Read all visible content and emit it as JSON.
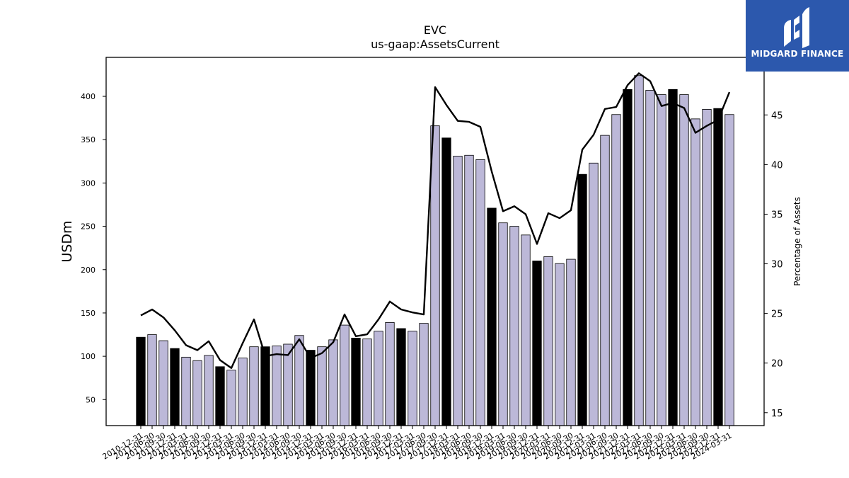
{
  "title": "EVC",
  "subtitle": "us-gaap:AssetsCurrent",
  "brand": {
    "name": "MIDGARD FINANCE",
    "color": "#2c58ad",
    "icon": "midgard-logo-icon"
  },
  "colors": {
    "bar_year_end": "#000000",
    "bar_quarter": "#bcb8d8",
    "line": "#000000"
  },
  "chart_data": {
    "type": "bar",
    "ylabel": "USDm",
    "y2label": "Percentage of Assets",
    "ylim": [
      20,
      445
    ],
    "y2lim": [
      13.7,
      50.8
    ],
    "yticks": [
      50,
      100,
      150,
      200,
      250,
      300,
      350,
      400
    ],
    "y2ticks": [
      15,
      20,
      25,
      30,
      35,
      40,
      45
    ],
    "tick_labels_shown": [
      "2010-12-31",
      "2011-06-30",
      "2011-09-30",
      "2011-12-31",
      "2012-03-31",
      "2012-06-30",
      "2012-09-30",
      "2012-12-31",
      "2013-03-31",
      "2013-06-30",
      "2013-09-30",
      "2013-12-31",
      "2014-03-31",
      "2014-06-30",
      "2014-09-30",
      "2014-12-31",
      "2015-03-31",
      "2015-06-30",
      "2015-09-30",
      "2015-12-31",
      "2016-03-31",
      "2016-06-30",
      "2016-09-30",
      "2016-12-31",
      "2017-03-31",
      "2017-06-30",
      "2017-09-30",
      "2017-12-31",
      "2018-03-31",
      "2018-06-30",
      "2018-09-30",
      "2018-12-31",
      "2019-03-31",
      "2019-06-30",
      "2019-09-30",
      "2019-12-31",
      "2020-03-31",
      "2020-06-30",
      "2020-09-30",
      "2020-12-31",
      "2021-03-31",
      "2021-06-30",
      "2021-09-30",
      "2021-12-31",
      "2022-03-31",
      "2022-06-30",
      "2022-09-30",
      "2022-12-31",
      "2023-03-31",
      "2023-06-30",
      "2023-09-30",
      "2023-12-31",
      "2024-03-31"
    ],
    "year_end_bars": [
      1,
      0,
      0,
      1,
      0,
      0,
      0,
      1,
      0,
      0,
      0,
      1,
      0,
      0,
      0,
      1,
      0,
      0,
      0,
      1,
      0,
      0,
      0,
      1,
      0,
      0,
      0,
      1,
      0,
      0,
      0,
      1,
      0,
      0,
      0,
      1,
      0,
      0,
      0,
      1,
      0,
      0,
      0,
      1,
      0,
      0,
      0,
      1,
      0,
      0,
      0,
      1,
      0
    ],
    "series": [
      {
        "values": [
          122,
          125,
          118,
          109,
          99,
          95,
          101,
          88,
          84,
          98,
          111,
          111,
          112,
          114,
          124,
          107,
          111,
          119,
          136,
          121,
          120,
          129,
          139,
          132,
          129,
          138,
          366,
          352,
          331,
          332,
          327,
          271,
          254,
          250,
          240,
          210,
          215,
          207,
          212,
          310,
          323,
          355,
          379,
          408,
          424,
          407,
          402,
          408,
          402,
          374,
          385,
          386,
          379
        ]
      },
      {
        "name": "Percentage of Assets",
        "values": [
          24.8,
          25.4,
          24.6,
          23.3,
          21.8,
          21.3,
          22.2,
          20.3,
          19.5,
          22.0,
          24.4,
          20.7,
          20.9,
          20.8,
          22.4,
          20.5,
          21.0,
          22.1,
          24.9,
          22.7,
          22.9,
          24.4,
          26.2,
          25.4,
          25.1,
          24.9,
          47.8,
          46.0,
          44.4,
          44.3,
          43.8,
          39.3,
          35.3,
          35.8,
          35.0,
          32.0,
          35.1,
          34.6,
          35.4,
          41.5,
          43.0,
          45.6,
          45.8,
          48.0,
          49.2,
          48.4,
          45.9,
          46.2,
          45.7,
          43.2,
          43.9,
          44.5,
          47.3
        ]
      }
    ]
  }
}
